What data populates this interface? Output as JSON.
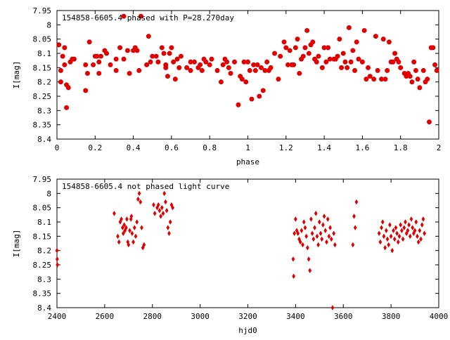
{
  "chart_data": [
    {
      "type": "scatter",
      "title": "154858-6605.4 phased with P=28.270day",
      "xlabel": "phase",
      "ylabel": "I[mag]",
      "xlim": [
        0,
        2
      ],
      "ylim": [
        7.95,
        8.4
      ],
      "y_inverted": true,
      "grid": false,
      "marker": "filled-star",
      "color": "#e00000",
      "x_ticks": [
        "0",
        "0.2",
        "0.4",
        "0.6",
        "0.8",
        "1",
        "1.2",
        "1.4",
        "1.6",
        "1.8",
        "2"
      ],
      "y_ticks": [
        "7.95",
        "8",
        "8.05",
        "8.1",
        "8.15",
        "8.2",
        "8.25",
        "8.3",
        "8.35",
        "8.4"
      ],
      "points": [
        [
          0.01,
          8.07
        ],
        [
          0.02,
          8.16
        ],
        [
          0.02,
          8.2
        ],
        [
          0.03,
          8.11
        ],
        [
          0.04,
          8.14
        ],
        [
          0.04,
          8.08
        ],
        [
          0.05,
          8.29
        ],
        [
          0.05,
          8.21
        ],
        [
          0.06,
          8.22
        ],
        [
          0.07,
          8.13
        ],
        [
          0.08,
          8.12
        ],
        [
          0.09,
          8.12
        ],
        [
          0.15,
          8.14
        ],
        [
          0.15,
          8.23
        ],
        [
          0.16,
          8.17
        ],
        [
          0.17,
          8.06
        ],
        [
          0.19,
          8.14
        ],
        [
          0.2,
          8.11
        ],
        [
          0.21,
          8.11
        ],
        [
          0.22,
          8.17
        ],
        [
          0.22,
          8.13
        ],
        [
          0.23,
          8.11
        ],
        [
          0.25,
          8.09
        ],
        [
          0.26,
          8.1
        ],
        [
          0.28,
          8.14
        ],
        [
          0.31,
          8.12
        ],
        [
          0.31,
          8.16
        ],
        [
          0.33,
          8.08
        ],
        [
          0.35,
          7.97
        ],
        [
          0.35,
          8.12
        ],
        [
          0.37,
          8.09
        ],
        [
          0.38,
          8.17
        ],
        [
          0.4,
          8.09
        ],
        [
          0.41,
          8.08
        ],
        [
          0.42,
          8.09
        ],
        [
          0.43,
          8.16
        ],
        [
          0.44,
          7.97
        ],
        [
          0.47,
          8.14
        ],
        [
          0.48,
          8.04
        ],
        [
          0.49,
          8.13
        ],
        [
          0.5,
          8.11
        ],
        [
          0.52,
          8.11
        ],
        [
          0.53,
          8.13
        ],
        [
          0.55,
          8.08
        ],
        [
          0.56,
          8.1
        ],
        [
          0.57,
          8.14
        ],
        [
          0.57,
          8.15
        ],
        [
          0.58,
          8.18
        ],
        [
          0.59,
          8.1
        ],
        [
          0.6,
          8.08
        ],
        [
          0.61,
          8.13
        ],
        [
          0.62,
          8.19
        ],
        [
          0.63,
          8.12
        ],
        [
          0.64,
          8.15
        ],
        [
          0.65,
          8.11
        ],
        [
          0.68,
          8.15
        ],
        [
          0.7,
          8.16
        ],
        [
          0.7,
          8.13
        ],
        [
          0.72,
          8.13
        ],
        [
          0.74,
          8.15
        ],
        [
          0.75,
          8.14
        ],
        [
          0.76,
          8.16
        ],
        [
          0.77,
          8.12
        ],
        [
          0.78,
          8.13
        ],
        [
          0.8,
          8.14
        ],
        [
          0.81,
          8.12
        ],
        [
          0.84,
          8.16
        ],
        [
          0.86,
          8.2
        ],
        [
          0.87,
          8.14
        ],
        [
          0.88,
          8.12
        ],
        [
          0.89,
          8.13
        ],
        [
          0.9,
          8.15
        ],
        [
          0.91,
          8.17
        ],
        [
          0.93,
          8.13
        ],
        [
          0.95,
          8.28
        ],
        [
          0.96,
          8.18
        ],
        [
          0.97,
          8.19
        ],
        [
          0.98,
          8.13
        ],
        [
          0.99,
          8.2
        ],
        [
          1.0,
          8.13
        ],
        [
          1.01,
          8.16
        ],
        [
          1.02,
          8.26
        ],
        [
          1.03,
          8.14
        ],
        [
          1.04,
          8.16
        ],
        [
          1.05,
          8.14
        ],
        [
          1.06,
          8.25
        ],
        [
          1.07,
          8.15
        ],
        [
          1.08,
          8.23
        ],
        [
          1.09,
          8.16
        ],
        [
          1.1,
          8.13
        ],
        [
          1.11,
          8.16
        ],
        [
          1.12,
          8.15
        ],
        [
          1.14,
          8.1
        ],
        [
          1.16,
          8.19
        ],
        [
          1.17,
          8.11
        ],
        [
          1.19,
          8.06
        ],
        [
          1.2,
          8.08
        ],
        [
          1.21,
          8.14
        ],
        [
          1.22,
          8.09
        ],
        [
          1.23,
          8.14
        ],
        [
          1.24,
          8.14
        ],
        [
          1.25,
          8.08
        ],
        [
          1.26,
          8.05
        ],
        [
          1.27,
          8.17
        ],
        [
          1.28,
          8.12
        ],
        [
          1.29,
          8.11
        ],
        [
          1.3,
          8.08
        ],
        [
          1.31,
          8.02
        ],
        [
          1.32,
          8.1
        ],
        [
          1.33,
          8.07
        ],
        [
          1.34,
          8.06
        ],
        [
          1.35,
          8.12
        ],
        [
          1.36,
          8.13
        ],
        [
          1.37,
          8.11
        ],
        [
          1.39,
          8.15
        ],
        [
          1.4,
          8.08
        ],
        [
          1.41,
          8.13
        ],
        [
          1.42,
          8.08
        ],
        [
          1.43,
          8.12
        ],
        [
          1.45,
          8.12
        ],
        [
          1.46,
          8.12
        ],
        [
          1.47,
          8.11
        ],
        [
          1.48,
          8.05
        ],
        [
          1.49,
          8.15
        ],
        [
          1.5,
          8.1
        ],
        [
          1.51,
          8.13
        ],
        [
          1.52,
          8.15
        ],
        [
          1.53,
          8.01
        ],
        [
          1.54,
          8.13
        ],
        [
          1.55,
          8.09
        ],
        [
          1.56,
          8.16
        ],
        [
          1.57,
          8.06
        ],
        [
          1.58,
          8.12
        ],
        [
          1.6,
          8.13
        ],
        [
          1.61,
          8.02
        ],
        [
          1.62,
          8.19
        ],
        [
          1.63,
          8.15
        ],
        [
          1.64,
          8.18
        ],
        [
          1.66,
          8.19
        ],
        [
          1.67,
          8.04
        ],
        [
          1.68,
          8.16
        ],
        [
          1.7,
          8.19
        ],
        [
          1.71,
          8.05
        ],
        [
          1.72,
          8.19
        ],
        [
          1.73,
          8.16
        ],
        [
          1.74,
          8.06
        ],
        [
          1.75,
          8.13
        ],
        [
          1.76,
          8.13
        ],
        [
          1.77,
          8.1
        ],
        [
          1.78,
          8.12
        ],
        [
          1.79,
          8.13
        ],
        [
          1.8,
          8.15
        ],
        [
          1.82,
          8.17
        ],
        [
          1.83,
          8.18
        ],
        [
          1.84,
          8.17
        ],
        [
          1.85,
          8.18
        ],
        [
          1.86,
          8.2
        ],
        [
          1.87,
          8.13
        ],
        [
          1.88,
          8.16
        ],
        [
          1.89,
          8.19
        ],
        [
          1.9,
          8.22
        ],
        [
          1.92,
          8.16
        ],
        [
          1.93,
          8.2
        ],
        [
          1.94,
          8.19
        ],
        [
          1.95,
          8.34
        ],
        [
          1.96,
          8.08
        ],
        [
          1.97,
          8.08
        ],
        [
          1.98,
          8.14
        ],
        [
          1.99,
          8.16
        ]
      ]
    },
    {
      "type": "scatter",
      "title": "154858-6605.4 not phased light curve",
      "xlabel": "hjd0",
      "ylabel": "I[mag]",
      "xlim": [
        2400,
        4000
      ],
      "ylim": [
        7.95,
        8.4
      ],
      "y_inverted": true,
      "grid": false,
      "marker": "diamond",
      "color": "#e00000",
      "x_ticks": [
        "2400",
        "2600",
        "2800",
        "3000",
        "3200",
        "3400",
        "3600",
        "3800",
        "4000"
      ],
      "y_ticks": [
        "7.95",
        "8",
        "8.05",
        "8.1",
        "8.15",
        "8.2",
        "8.25",
        "8.3",
        "8.35",
        "8.4"
      ],
      "points": [
        [
          2400,
          8.2
        ],
        [
          2401,
          8.23
        ],
        [
          2402,
          8.25
        ],
        [
          2640,
          8.07
        ],
        [
          2655,
          8.15
        ],
        [
          2660,
          8.17
        ],
        [
          2665,
          8.1
        ],
        [
          2670,
          8.09
        ],
        [
          2675,
          8.12
        ],
        [
          2678,
          8.14
        ],
        [
          2682,
          8.11
        ],
        [
          2685,
          8.13
        ],
        [
          2690,
          8.12
        ],
        [
          2693,
          8.09
        ],
        [
          2697,
          8.17
        ],
        [
          2700,
          8.18
        ],
        [
          2705,
          8.13
        ],
        [
          2710,
          8.09
        ],
        [
          2712,
          8.08
        ],
        [
          2715,
          8.14
        ],
        [
          2720,
          8.17
        ],
        [
          2725,
          8.12
        ],
        [
          2730,
          8.15
        ],
        [
          2735,
          8.1
        ],
        [
          2740,
          8.02
        ],
        [
          2745,
          8.0
        ],
        [
          2750,
          8.03
        ],
        [
          2755,
          8.12
        ],
        [
          2760,
          8.19
        ],
        [
          2765,
          8.18
        ],
        [
          2805,
          8.04
        ],
        [
          2810,
          8.07
        ],
        [
          2820,
          8.05
        ],
        [
          2825,
          8.04
        ],
        [
          2830,
          8.06
        ],
        [
          2835,
          8.08
        ],
        [
          2840,
          8.05
        ],
        [
          2845,
          8.07
        ],
        [
          2850,
          8.0
        ],
        [
          2855,
          8.03
        ],
        [
          2860,
          8.06
        ],
        [
          2865,
          8.12
        ],
        [
          2870,
          8.14
        ],
        [
          2875,
          8.1
        ],
        [
          2880,
          8.04
        ],
        [
          2885,
          8.05
        ],
        [
          3390,
          8.23
        ],
        [
          3392,
          8.29
        ],
        [
          3395,
          8.14
        ],
        [
          3400,
          8.09
        ],
        [
          3405,
          8.13
        ],
        [
          3410,
          8.14
        ],
        [
          3415,
          8.16
        ],
        [
          3420,
          8.17
        ],
        [
          3425,
          8.13
        ],
        [
          3430,
          8.18
        ],
        [
          3435,
          8.1
        ],
        [
          3440,
          8.12
        ],
        [
          3445,
          8.15
        ],
        [
          3450,
          8.19
        ],
        [
          3455,
          8.23
        ],
        [
          3460,
          8.27
        ],
        [
          3465,
          8.09
        ],
        [
          3470,
          8.14
        ],
        [
          3475,
          8.16
        ],
        [
          3480,
          8.12
        ],
        [
          3485,
          8.07
        ],
        [
          3490,
          8.15
        ],
        [
          3495,
          8.18
        ],
        [
          3500,
          8.1
        ],
        [
          3505,
          8.14
        ],
        [
          3510,
          8.16
        ],
        [
          3515,
          8.11
        ],
        [
          3520,
          8.08
        ],
        [
          3525,
          8.13
        ],
        [
          3530,
          8.17
        ],
        [
          3535,
          8.09
        ],
        [
          3540,
          8.15
        ],
        [
          3545,
          8.12
        ],
        [
          3550,
          8.16
        ],
        [
          3555,
          8.4
        ],
        [
          3560,
          8.14
        ],
        [
          3565,
          8.18
        ],
        [
          3640,
          8.18
        ],
        [
          3645,
          8.08
        ],
        [
          3650,
          8.12
        ],
        [
          3655,
          8.03
        ],
        [
          3750,
          8.14
        ],
        [
          3755,
          8.17
        ],
        [
          3760,
          8.12
        ],
        [
          3765,
          8.1
        ],
        [
          3770,
          8.15
        ],
        [
          3775,
          8.19
        ],
        [
          3780,
          8.13
        ],
        [
          3785,
          8.16
        ],
        [
          3790,
          8.18
        ],
        [
          3795,
          8.11
        ],
        [
          3800,
          8.15
        ],
        [
          3805,
          8.2
        ],
        [
          3810,
          8.13
        ],
        [
          3815,
          8.16
        ],
        [
          3820,
          8.12
        ],
        [
          3825,
          8.14
        ],
        [
          3830,
          8.17
        ],
        [
          3835,
          8.15
        ],
        [
          3840,
          8.11
        ],
        [
          3845,
          8.13
        ],
        [
          3850,
          8.16
        ],
        [
          3855,
          8.12
        ],
        [
          3860,
          8.1
        ],
        [
          3865,
          8.14
        ],
        [
          3870,
          8.13
        ],
        [
          3875,
          8.11
        ],
        [
          3880,
          8.15
        ],
        [
          3885,
          8.09
        ],
        [
          3890,
          8.12
        ],
        [
          3895,
          8.14
        ],
        [
          3900,
          8.13
        ],
        [
          3905,
          8.1
        ],
        [
          3910,
          8.15
        ],
        [
          3915,
          8.17
        ],
        [
          3920,
          8.13
        ],
        [
          3925,
          8.16
        ],
        [
          3930,
          8.11
        ],
        [
          3935,
          8.09
        ],
        [
          3940,
          8.14
        ]
      ]
    }
  ]
}
